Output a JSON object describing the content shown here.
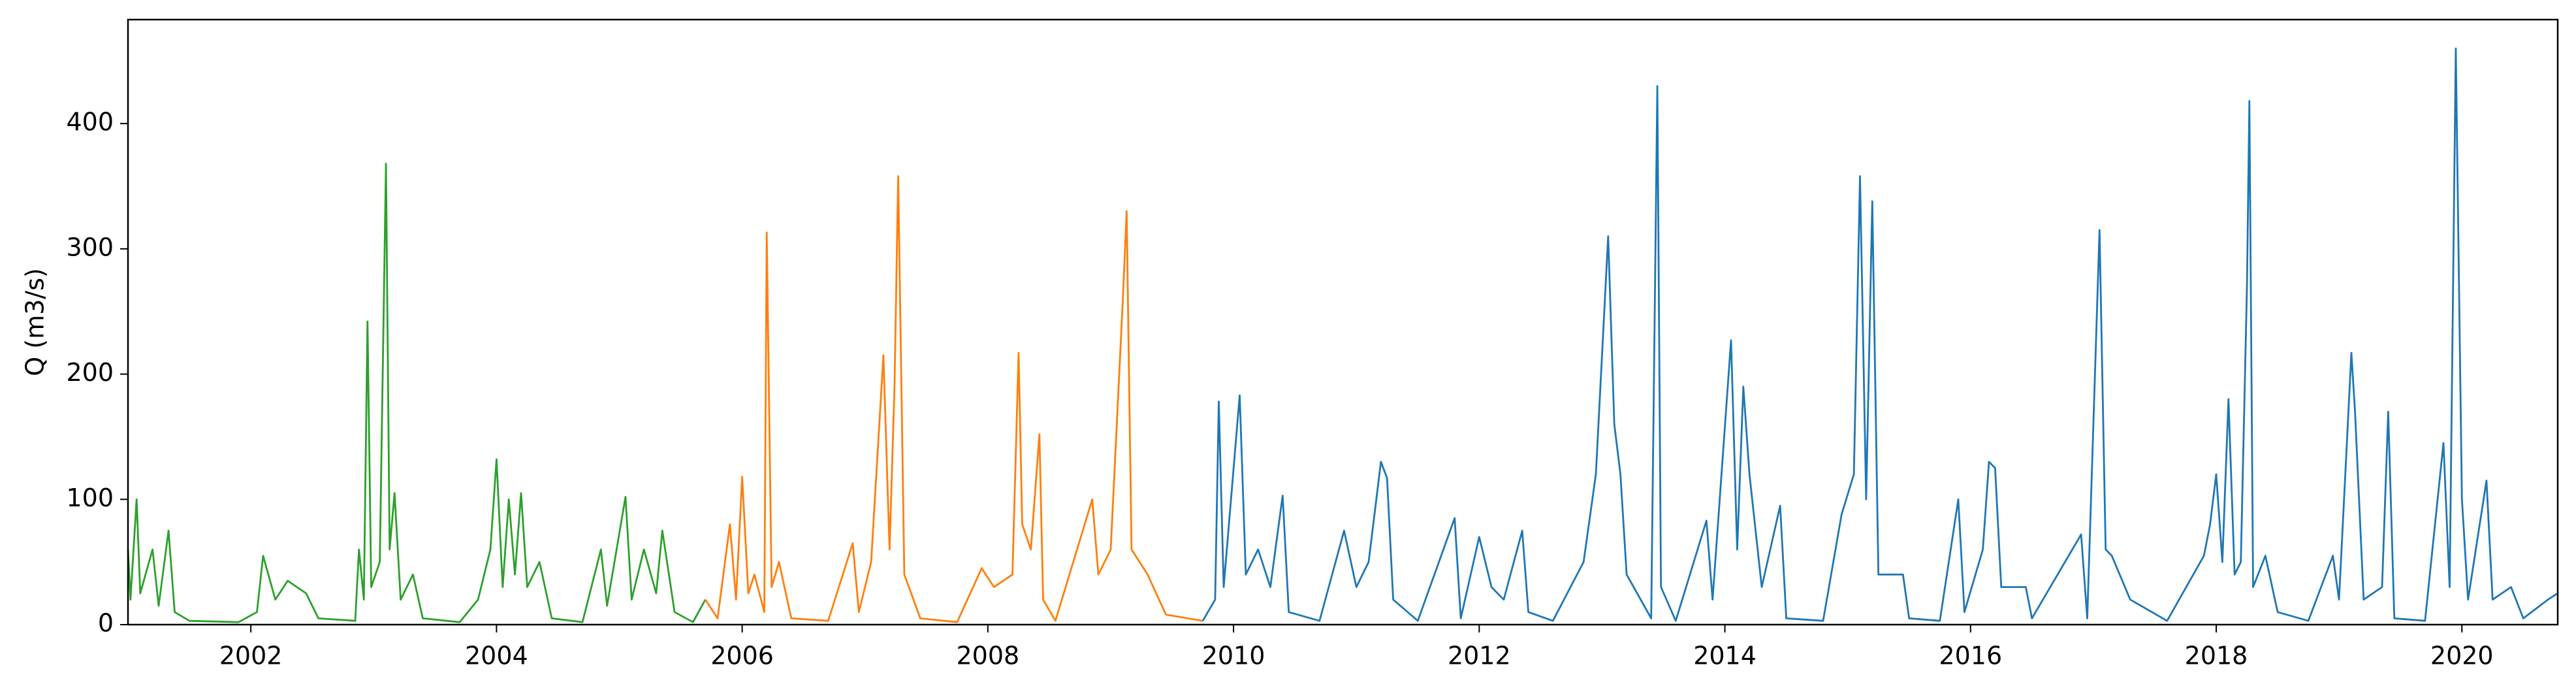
{
  "chart_data": {
    "type": "line",
    "ylabel": "Q (m3/s)",
    "xlim": [
      2001.0,
      2020.78
    ],
    "xticks": [
      2002,
      2004,
      2006,
      2008,
      2010,
      2012,
      2014,
      2016,
      2018,
      2020
    ],
    "ylim": [
      0,
      483
    ],
    "yticks": [
      0,
      100,
      200,
      300,
      400
    ],
    "grid": false,
    "series": [
      {
        "color": "#2ca02c",
        "x": [
          2001.0,
          2001.02,
          2001.07,
          2001.1,
          2001.2,
          2001.25,
          2001.33,
          2001.38,
          2001.5,
          2001.9,
          2002.05,
          2002.1,
          2002.2,
          2002.3,
          2002.45,
          2002.55,
          2002.85,
          2002.88,
          2002.92,
          2002.95,
          2002.98,
          2003.05,
          2003.1,
          2003.13,
          2003.17,
          2003.22,
          2003.32,
          2003.4,
          2003.7,
          2003.85,
          2003.95,
          2004.0,
          2004.05,
          2004.1,
          2004.15,
          2004.2,
          2004.25,
          2004.35,
          2004.45,
          2004.7,
          2004.85,
          2004.9,
          2005.05,
          2005.1,
          2005.2,
          2005.3,
          2005.35,
          2005.45,
          2005.6,
          2005.7
        ],
        "values": [
          60,
          20,
          100,
          25,
          60,
          15,
          75,
          10,
          3,
          2,
          10,
          55,
          20,
          35,
          25,
          5,
          3,
          60,
          20,
          242,
          30,
          50,
          368,
          60,
          105,
          20,
          40,
          5,
          2,
          20,
          60,
          132,
          30,
          100,
          40,
          105,
          30,
          50,
          5,
          2,
          60,
          15,
          102,
          20,
          60,
          25,
          75,
          10,
          2,
          20
        ]
      },
      {
        "color": "#ff7f0e",
        "x": [
          2005.7,
          2005.8,
          2005.9,
          2005.95,
          2006.0,
          2006.05,
          2006.1,
          2006.18,
          2006.2,
          2006.24,
          2006.3,
          2006.4,
          2006.7,
          2006.9,
          2006.95,
          2007.05,
          2007.15,
          2007.2,
          2007.24,
          2007.27,
          2007.32,
          2007.45,
          2007.75,
          2007.95,
          2008.05,
          2008.2,
          2008.25,
          2008.28,
          2008.35,
          2008.42,
          2008.45,
          2008.55,
          2008.85,
          2008.9,
          2009.0,
          2009.1,
          2009.13,
          2009.17,
          2009.3,
          2009.45,
          2009.75
        ],
        "values": [
          20,
          5,
          80,
          20,
          118,
          25,
          40,
          10,
          313,
          30,
          50,
          5,
          3,
          65,
          10,
          50,
          215,
          60,
          190,
          358,
          40,
          5,
          2,
          45,
          30,
          40,
          217,
          80,
          60,
          152,
          20,
          3,
          100,
          40,
          60,
          262,
          330,
          60,
          40,
          8,
          3
        ]
      },
      {
        "color": "#1f77b4",
        "x": [
          2009.75,
          2009.85,
          2009.88,
          2009.92,
          2010.05,
          2010.1,
          2010.2,
          2010.3,
          2010.4,
          2010.45,
          2010.7,
          2010.9,
          2011.0,
          2011.1,
          2011.2,
          2011.25,
          2011.3,
          2011.5,
          2011.8,
          2011.85,
          2012.0,
          2012.1,
          2012.2,
          2012.35,
          2012.4,
          2012.6,
          2012.85,
          2012.95,
          2013.05,
          2013.1,
          2013.15,
          2013.2,
          2013.4,
          2013.45,
          2013.48,
          2013.6,
          2013.85,
          2013.9,
          2014.05,
          2014.1,
          2014.15,
          2014.2,
          2014.3,
          2014.45,
          2014.5,
          2014.8,
          2014.95,
          2015.05,
          2015.1,
          2015.15,
          2015.2,
          2015.25,
          2015.45,
          2015.5,
          2015.75,
          2015.9,
          2015.95,
          2016.1,
          2016.15,
          2016.2,
          2016.25,
          2016.45,
          2016.5,
          2016.9,
          2016.95,
          2017.05,
          2017.1,
          2017.15,
          2017.3,
          2017.6,
          2017.9,
          2017.95,
          2018.0,
          2018.05,
          2018.1,
          2018.15,
          2018.2,
          2018.25,
          2018.27,
          2018.3,
          2018.4,
          2018.5,
          2018.75,
          2018.95,
          2019.0,
          2019.1,
          2019.13,
          2019.2,
          2019.35,
          2019.4,
          2019.45,
          2019.7,
          2019.85,
          2019.9,
          2019.95,
          2020.0,
          2020.05,
          2020.2,
          2020.25,
          2020.4,
          2020.5,
          2020.7,
          2020.78
        ],
        "values": [
          3,
          20,
          178,
          30,
          183,
          40,
          60,
          30,
          103,
          10,
          3,
          75,
          30,
          50,
          130,
          117,
          20,
          3,
          85,
          5,
          70,
          30,
          20,
          75,
          10,
          3,
          50,
          120,
          310,
          160,
          120,
          40,
          5,
          430,
          30,
          3,
          83,
          20,
          227,
          60,
          190,
          120,
          30,
          95,
          5,
          3,
          88,
          120,
          358,
          100,
          338,
          40,
          40,
          5,
          3,
          100,
          10,
          60,
          130,
          125,
          30,
          30,
          5,
          72,
          5,
          315,
          60,
          55,
          20,
          3,
          55,
          80,
          120,
          50,
          180,
          40,
          50,
          270,
          418,
          30,
          55,
          10,
          3,
          55,
          20,
          217,
          170,
          20,
          30,
          170,
          5,
          3,
          145,
          30,
          460,
          100,
          20,
          115,
          20,
          30,
          5,
          20,
          25
        ]
      }
    ]
  }
}
